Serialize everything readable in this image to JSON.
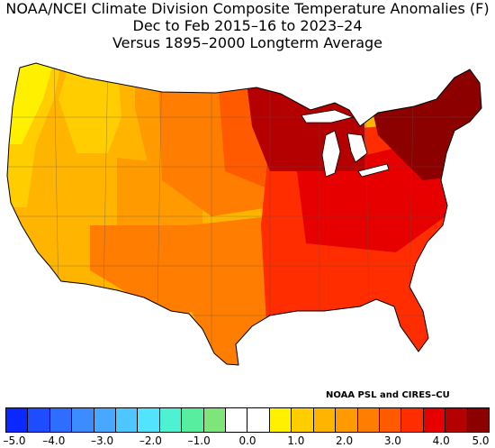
{
  "title": {
    "line1": "NOAA/NCEI Climate Division Composite Temperature Anomalies (F)",
    "line2": "Dec to Feb 2015–16 to 2023–24",
    "line3": "Versus 1895–2000 Longterm Average"
  },
  "credit": "NOAA PSL and CIRES–CU",
  "legend": {
    "colors": [
      "#0a28ff",
      "#1e4cff",
      "#2e6eff",
      "#3c8cff",
      "#48a8ff",
      "#4ec6ff",
      "#52e3ff",
      "#4ef1d2",
      "#57ef9f",
      "#7ee57a",
      "#ffffff",
      "#ffffff",
      "#fff000",
      "#ffcd00",
      "#ffb400",
      "#ff9b00",
      "#ff7d00",
      "#ff5a00",
      "#ff2d00",
      "#e60000",
      "#b40000",
      "#8c0000"
    ],
    "tick_labels": [
      "–5.0",
      "–4.0",
      "–3.0",
      "–2.0",
      "–1.0",
      "0.0",
      "1.0",
      "2.0",
      "3.0",
      "4.0",
      "5.0"
    ]
  },
  "map_regions": [
    {
      "name": "Pacific Northwest coast",
      "anomaly": 0.8,
      "color": "#fff000"
    },
    {
      "name": "Northwest interior",
      "anomaly": 1.6,
      "color": "#ffcd00"
    },
    {
      "name": "California",
      "anomaly": 2.0,
      "color": "#ffb400"
    },
    {
      "name": "Southwest",
      "anomaly": 1.8,
      "color": "#ffb400"
    },
    {
      "name": "Northern Rockies",
      "anomaly": 2.2,
      "color": "#ff9b00"
    },
    {
      "name": "Southern Rockies",
      "anomaly": 2.3,
      "color": "#ff9b00"
    },
    {
      "name": "Northern Plains",
      "anomaly": 3.3,
      "color": "#ff5a00"
    },
    {
      "name": "Central Plains",
      "anomaly": 2.8,
      "color": "#ff7d00"
    },
    {
      "name": "Texas",
      "anomaly": 2.7,
      "color": "#ff7d00"
    },
    {
      "name": "Upper Midwest",
      "anomaly": 4.5,
      "color": "#b40000"
    },
    {
      "name": "Ohio Valley",
      "anomaly": 3.7,
      "color": "#e60000"
    },
    {
      "name": "Southeast",
      "anomaly": 3.2,
      "color": "#ff2d00"
    },
    {
      "name": "Florida",
      "anomaly": 3.0,
      "color": "#ff2d00"
    },
    {
      "name": "Mid-Atlantic",
      "anomaly": 3.8,
      "color": "#e60000"
    },
    {
      "name": "New England",
      "anomaly": 5.0,
      "color": "#8c0000"
    }
  ]
}
